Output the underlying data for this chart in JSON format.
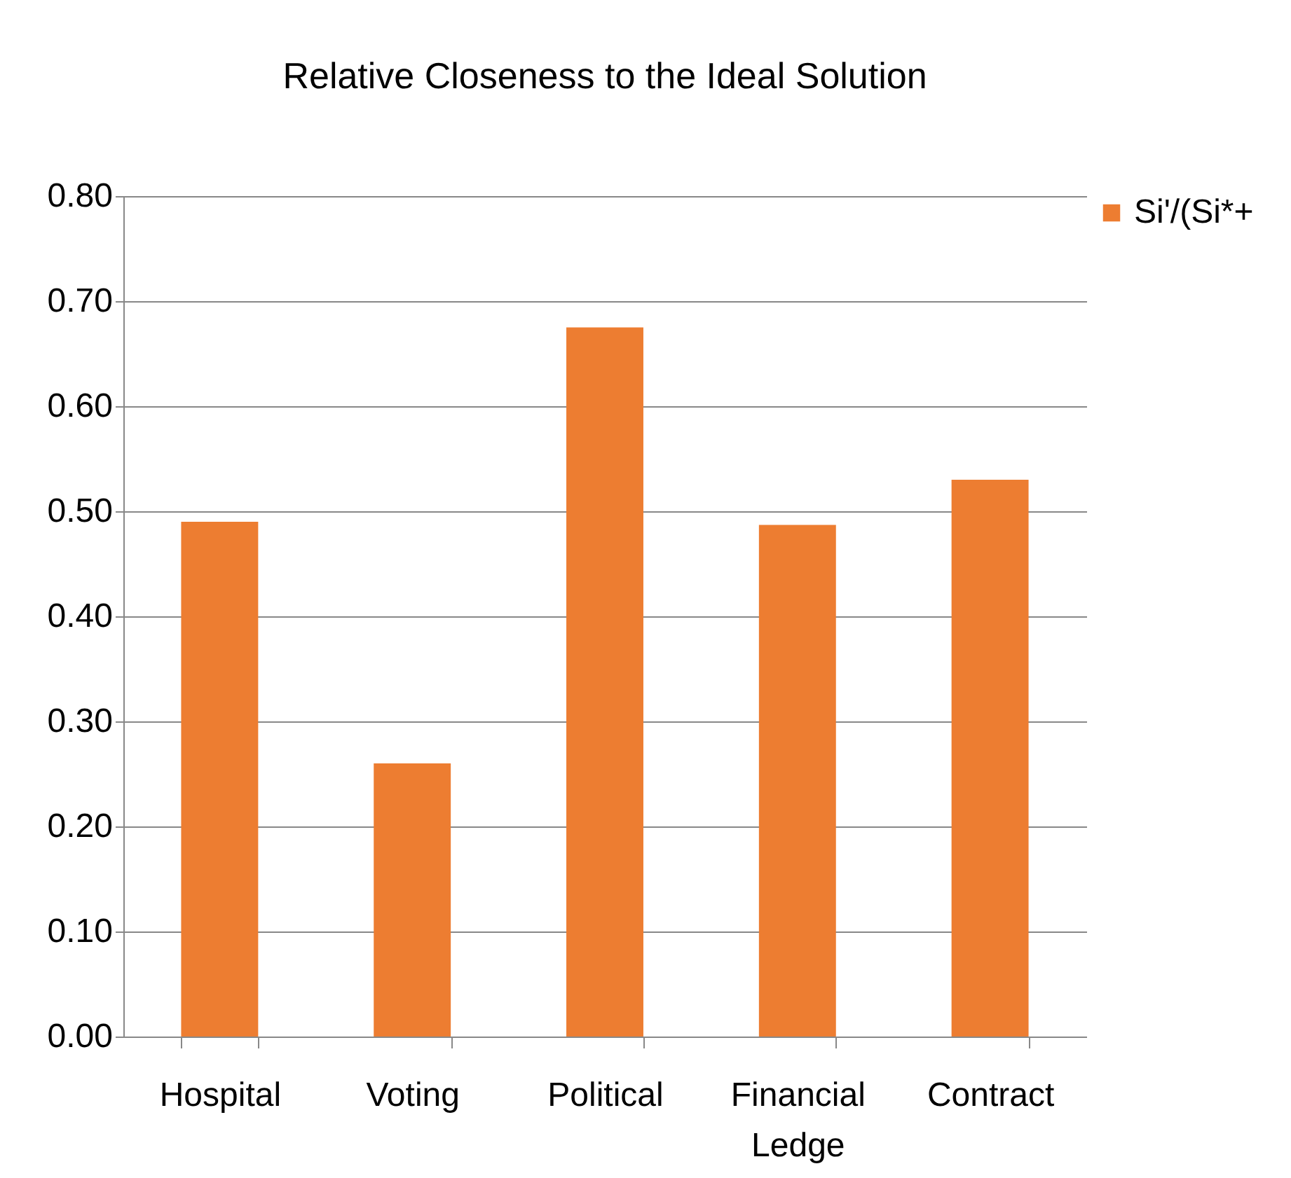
{
  "chart_data": {
    "type": "bar",
    "title": "Relative Closeness to the Ideal Solution",
    "categories": [
      "Hospital",
      "Voting",
      "Political",
      "Financial Ledge",
      "Contract"
    ],
    "series": [
      {
        "name": "Si'/(Si*+",
        "color": "#ed7d31",
        "values": [
          0.49,
          0.26,
          0.675,
          0.487,
          0.53
        ]
      }
    ],
    "ylim": [
      0,
      0.8
    ],
    "yticks": [
      {
        "value": 0,
        "label": "0.00"
      },
      {
        "value": 0.1,
        "label": "0.10"
      },
      {
        "value": 0.2,
        "label": "0.20"
      },
      {
        "value": 0.3,
        "label": "0.30"
      },
      {
        "value": 0.4,
        "label": "0.40"
      },
      {
        "value": 0.5,
        "label": "0.50"
      },
      {
        "value": 0.6,
        "label": "0.60"
      },
      {
        "value": 0.7,
        "label": "0.70"
      },
      {
        "value": 0.8,
        "label": "0.80"
      }
    ],
    "grid": "y",
    "legend": "right"
  }
}
